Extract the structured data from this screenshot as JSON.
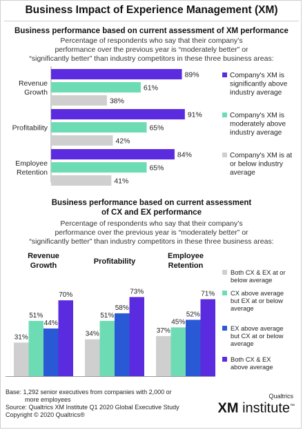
{
  "title": "Business Impact of Experience Management (XM)",
  "section1": {
    "subtitle": "Business performance based on current assessment of XM performance",
    "desc_lines": [
      "Percentage of respondents who say that their company’s",
      "performance over the previous year is “moderately better” or",
      "“significantly better” than industry competitors in these three business areas:"
    ]
  },
  "section2": {
    "subtitle_lines": [
      "Business performance based on current assessment",
      "of CX and EX performance"
    ],
    "desc_lines": [
      "Percentage of respondents who say that their company’s",
      "performance over the previous year is “moderately better” or",
      "“significantly better” than industry competitors in these three business areas:"
    ]
  },
  "colors": {
    "purple": "#5b2be0",
    "teal": "#6ddcb4",
    "blue": "#2a59d6",
    "gray": "#cfcfcf"
  },
  "chart_data": [
    {
      "type": "bar",
      "orientation": "horizontal",
      "categories": [
        "Revenue Growth",
        "Profitability",
        "Employee Retention"
      ],
      "category_lines": [
        [
          "Revenue",
          "Growth"
        ],
        [
          "Profitability"
        ],
        [
          "Employee",
          "Retention"
        ]
      ],
      "series": [
        {
          "name": "Company's XM is significantly above industry average",
          "legend_lines": [
            "Company's XM is",
            "significantly above",
            "industry average"
          ],
          "color": "#5b2be0",
          "values": [
            89,
            91,
            84
          ]
        },
        {
          "name": "Company's XM is moderately above industry average",
          "legend_lines": [
            "Company's XM is",
            "moderately above",
            "industry average"
          ],
          "color": "#6ddcb4",
          "values": [
            61,
            65,
            65
          ]
        },
        {
          "name": "Company's XM is at or below industry average",
          "legend_lines": [
            "Company's XM is at",
            "or below industry",
            "average"
          ],
          "color": "#cfcfcf",
          "values": [
            38,
            42,
            41
          ]
        }
      ],
      "value_suffix": "%",
      "xlim": [
        0,
        100
      ],
      "legend_position": "right"
    },
    {
      "type": "bar",
      "orientation": "vertical",
      "categories": [
        "Revenue Growth",
        "Profitability",
        "Employee Retention"
      ],
      "category_lines": [
        [
          "Revenue",
          "Growth"
        ],
        [
          "Profitability"
        ],
        [
          "Employee",
          "Retention"
        ]
      ],
      "series": [
        {
          "name": "Both CX & EX at or below average",
          "legend_lines": [
            "Both CX & EX at or",
            "below average"
          ],
          "color": "#cfcfcf",
          "values": [
            31,
            34,
            37
          ]
        },
        {
          "name": "CX above average but EX at or below average",
          "legend_lines": [
            "CX above average",
            "but EX at or below",
            "average"
          ],
          "color": "#6ddcb4",
          "values": [
            51,
            51,
            45
          ]
        },
        {
          "name": "EX above average but CX at or below average",
          "legend_lines": [
            "EX above average",
            "but CX at or below",
            "average"
          ],
          "color": "#2a59d6",
          "values": [
            44,
            58,
            52
          ]
        },
        {
          "name": "Both CX & EX above average",
          "legend_lines": [
            "Both CX & EX",
            "above average"
          ],
          "color": "#5b2be0",
          "values": [
            70,
            73,
            71
          ]
        }
      ],
      "value_suffix": "%",
      "ylim": [
        0,
        100
      ],
      "legend_position": "right"
    }
  ],
  "footnote": {
    "lines": [
      "Base: 1,292 senior executives from companies with 2,000 or",
      "more employees",
      "Source: Qualtrics XM Institute Q1 2020 Global Executive Study",
      "Copyright © 2020 Qualtrics®"
    ]
  },
  "logo": {
    "small": "Qualtrics",
    "big_bold": "XM",
    "big_light": " institute",
    "tm": "™"
  }
}
